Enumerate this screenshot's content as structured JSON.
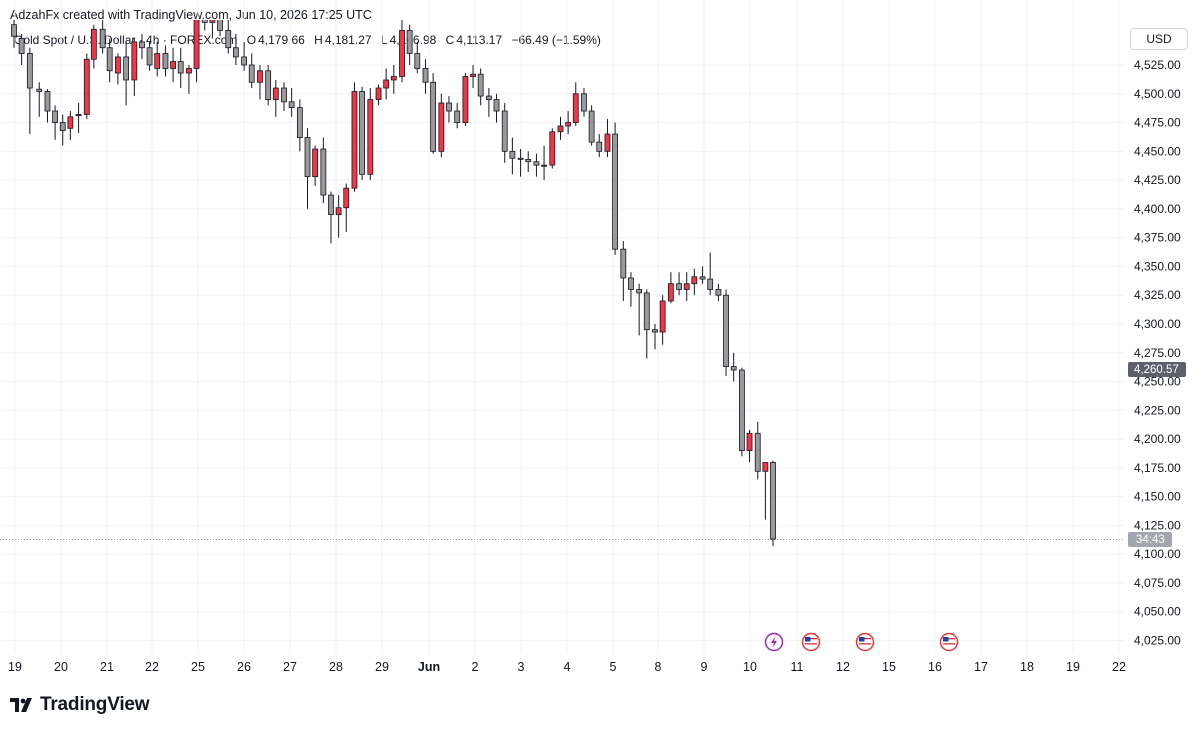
{
  "header": {
    "credit": "AdzahFx created with TradingView.com, Jun 10, 2026 17:25 UTC",
    "symbol": "Gold Spot / U.S. Dollar · 4h · FOREX.com",
    "open_label": "O",
    "open": "4,179.66",
    "high_label": "H",
    "high": "4,181.27",
    "low_label": "L",
    "low": "4,106.98",
    "close_label": "C",
    "close": "4,113.17",
    "change": "−66.49 (−1.59%)"
  },
  "currency": "USD",
  "price_labels": {
    "marker": "4,260.57",
    "countdown": "34:43"
  },
  "brand": {
    "name": "TradingView"
  },
  "colors": {
    "up": "#f23645",
    "down": "#9a9a9a",
    "outline": "#131722",
    "grid": "#f2f3f5",
    "axis_text": "#131722"
  },
  "chart_data": {
    "type": "candlestick",
    "y_axis": {
      "ticks": [
        4525,
        4500,
        4475,
        4450,
        4425,
        4400,
        4375,
        4350,
        4325,
        4300,
        4275,
        4250,
        4225,
        4200,
        4175,
        4150,
        4125,
        4100,
        4075,
        4050,
        4025
      ],
      "tick_labels": [
        "4,525.00",
        "4,500.00",
        "4,475.00",
        "4,450.00",
        "4,425.00",
        "4,400.00",
        "4,375.00",
        "4,350.00",
        "4,325.00",
        "4,300.00",
        "4,275.00",
        "4,250.00",
        "4,225.00",
        "4,200.00",
        "4,175.00",
        "4,150.00",
        "4,125.00",
        "4,100.00",
        "4,075.00",
        "4,050.00",
        "4,025.00"
      ],
      "range": [
        4012,
        4572
      ]
    },
    "x_axis": {
      "labels": [
        "19",
        "20",
        "21",
        "22",
        "25",
        "26",
        "27",
        "28",
        "29",
        "Jun",
        "2",
        "3",
        "4",
        "5",
        "8",
        "9",
        "10",
        "11",
        "12",
        "15",
        "16",
        "17",
        "18",
        "19",
        "22"
      ],
      "bold": [
        "Jun"
      ]
    },
    "ohlc": [
      [
        4560,
        4568,
        4540,
        4550
      ],
      [
        4548,
        4552,
        4525,
        4535
      ],
      [
        4535,
        4540,
        4465,
        4505
      ],
      [
        4504,
        4510,
        4480,
        4502
      ],
      [
        4502,
        4504,
        4475,
        4485
      ],
      [
        4485,
        4490,
        4460,
        4475
      ],
      [
        4475,
        4482,
        4455,
        4468
      ],
      [
        4470,
        4485,
        4460,
        4480
      ],
      [
        4481,
        4492,
        4466,
        4482
      ],
      [
        4482,
        4535,
        4478,
        4530
      ],
      [
        4530,
        4560,
        4522,
        4556
      ],
      [
        4556,
        4565,
        4535,
        4540
      ],
      [
        4540,
        4548,
        4510,
        4520
      ],
      [
        4518,
        4535,
        4508,
        4532
      ],
      [
        4532,
        4545,
        4490,
        4512
      ],
      [
        4512,
        4548,
        4498,
        4545
      ],
      [
        4545,
        4552,
        4530,
        4540
      ],
      [
        4540,
        4545,
        4520,
        4525
      ],
      [
        4522,
        4545,
        4515,
        4535
      ],
      [
        4535,
        4542,
        4515,
        4522
      ],
      [
        4522,
        4540,
        4510,
        4528
      ],
      [
        4528,
        4540,
        4505,
        4518
      ],
      [
        4518,
        4525,
        4500,
        4522
      ],
      [
        4522,
        4575,
        4510,
        4570
      ],
      [
        4570,
        4580,
        4555,
        4562
      ],
      [
        4562,
        4568,
        4548,
        4565
      ],
      [
        4565,
        4572,
        4550,
        4555
      ],
      [
        4555,
        4568,
        4535,
        4540
      ],
      [
        4540,
        4552,
        4525,
        4532
      ],
      [
        4532,
        4545,
        4520,
        4525
      ],
      [
        4525,
        4535,
        4505,
        4510
      ],
      [
        4510,
        4525,
        4495,
        4520
      ],
      [
        4520,
        4525,
        4490,
        4495
      ],
      [
        4495,
        4512,
        4480,
        4505
      ],
      [
        4505,
        4510,
        4485,
        4493
      ],
      [
        4493,
        4505,
        4480,
        4488
      ],
      [
        4488,
        4495,
        4450,
        4462
      ],
      [
        4462,
        4470,
        4400,
        4428
      ],
      [
        4428,
        4455,
        4420,
        4452
      ],
      [
        4452,
        4462,
        4405,
        4412
      ],
      [
        4412,
        4415,
        4370,
        4395
      ],
      [
        4395,
        4412,
        4375,
        4401
      ],
      [
        4401,
        4422,
        4380,
        4418
      ],
      [
        4418,
        4510,
        4415,
        4502
      ],
      [
        4502,
        4506,
        4425,
        4430
      ],
      [
        4430,
        4505,
        4425,
        4495
      ],
      [
        4495,
        4508,
        4490,
        4505
      ],
      [
        4505,
        4522,
        4495,
        4512
      ],
      [
        4512,
        4525,
        4500,
        4515
      ],
      [
        4515,
        4565,
        4510,
        4555
      ],
      [
        4555,
        4560,
        4525,
        4535
      ],
      [
        4535,
        4545,
        4518,
        4522
      ],
      [
        4522,
        4530,
        4500,
        4510
      ],
      [
        4510,
        4518,
        4448,
        4450
      ],
      [
        4450,
        4500,
        4445,
        4492
      ],
      [
        4492,
        4498,
        4475,
        4485
      ],
      [
        4485,
        4492,
        4470,
        4475
      ],
      [
        4475,
        4518,
        4472,
        4515
      ],
      [
        4515,
        4525,
        4505,
        4517
      ],
      [
        4517,
        4522,
        4490,
        4498
      ],
      [
        4498,
        4505,
        4480,
        4495
      ],
      [
        4495,
        4500,
        4475,
        4485
      ],
      [
        4485,
        4492,
        4440,
        4450
      ],
      [
        4450,
        4462,
        4430,
        4444
      ],
      [
        4444,
        4452,
        4428,
        4443
      ],
      [
        4443,
        4450,
        4432,
        4441
      ],
      [
        4441,
        4448,
        4428,
        4438
      ],
      [
        4438,
        4455,
        4425,
        4438
      ],
      [
        4438,
        4470,
        4435,
        4467
      ],
      [
        4467,
        4480,
        4460,
        4472
      ],
      [
        4472,
        4485,
        4465,
        4475
      ],
      [
        4475,
        4510,
        4472,
        4500
      ],
      [
        4500,
        4505,
        4480,
        4485
      ],
      [
        4485,
        4490,
        4455,
        4458
      ],
      [
        4458,
        4465,
        4445,
        4450
      ],
      [
        4450,
        4478,
        4445,
        4465
      ],
      [
        4465,
        4475,
        4360,
        4365
      ],
      [
        4365,
        4372,
        4320,
        4340
      ],
      [
        4340,
        4345,
        4315,
        4330
      ],
      [
        4330,
        4335,
        4290,
        4327
      ],
      [
        4327,
        4330,
        4270,
        4295
      ],
      [
        4295,
        4300,
        4278,
        4293
      ],
      [
        4293,
        4325,
        4282,
        4320
      ],
      [
        4320,
        4345,
        4318,
        4335
      ],
      [
        4335,
        4345,
        4325,
        4330
      ],
      [
        4330,
        4345,
        4320,
        4335
      ],
      [
        4335,
        4348,
        4325,
        4341
      ],
      [
        4341,
        4350,
        4335,
        4339
      ],
      [
        4339,
        4362,
        4325,
        4330
      ],
      [
        4330,
        4335,
        4320,
        4325
      ],
      [
        4325,
        4330,
        4255,
        4263
      ],
      [
        4263,
        4275,
        4250,
        4260
      ],
      [
        4260,
        4262,
        4185,
        4190
      ],
      [
        4190,
        4208,
        4180,
        4205
      ],
      [
        4205,
        4215,
        4165,
        4172
      ],
      [
        4172,
        4180,
        4130,
        4179.66
      ],
      [
        4179.66,
        4181.27,
        4106.98,
        4113.17
      ]
    ],
    "x_positions": [
      15.5,
      22.0,
      29.0,
      37.0,
      44.0,
      50.5,
      57.0,
      63.5,
      70.5,
      77.5,
      83.5,
      91.0,
      97.0,
      104.0,
      111.0,
      118.0,
      124.5,
      131.0,
      137.5,
      144.5,
      151.0,
      157.5,
      164.5,
      171.0,
      178.0,
      184.5,
      191.0,
      198.0,
      204.5,
      211.5,
      218.0,
      225.0,
      232.0,
      238.5,
      245.5,
      252.0,
      259.0,
      265.5,
      272.0,
      279.0,
      285.5,
      292.0,
      298.5,
      305.5,
      312.0,
      319.0,
      326.0,
      332.5,
      339.0,
      346.0,
      352.5,
      359.0,
      366.0,
      372.5,
      379.5,
      386.0,
      393.0,
      400.0,
      406.5,
      413.0,
      420.0,
      426.5,
      433.5,
      440.0,
      447.0,
      453.5,
      460.5,
      467.0,
      474.0,
      481.0,
      487.5,
      494.0,
      501.0,
      507.5,
      514.0,
      521.0,
      527.5,
      534.5,
      541.0,
      548.0,
      554.5,
      561.5,
      568.0,
      575.0,
      582.0,
      588.5,
      595.0,
      602.0,
      608.5,
      615.5,
      622.0,
      628.5,
      635.5,
      642.0,
      649.0,
      655.5,
      662.0
    ],
    "events": [
      "lightning",
      "us-flag",
      "us-flag",
      "us-flag"
    ]
  }
}
